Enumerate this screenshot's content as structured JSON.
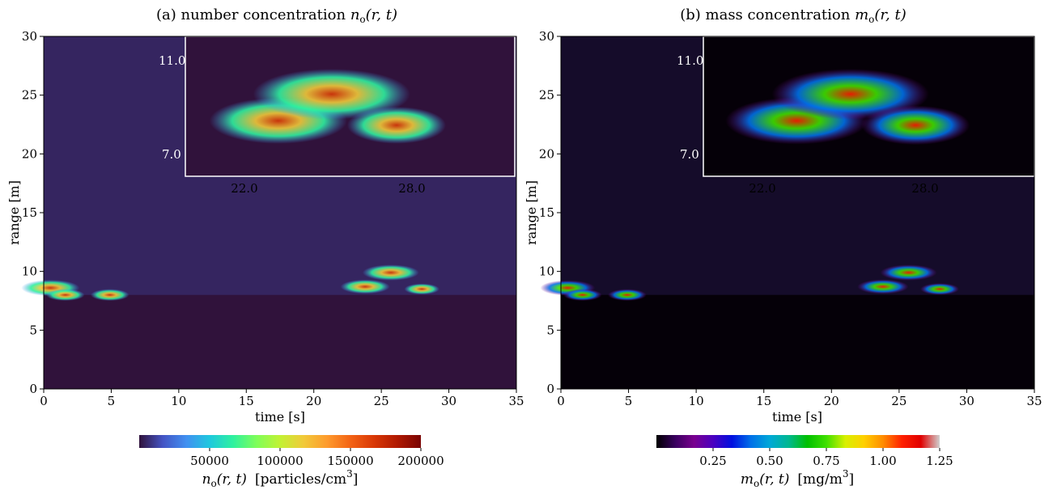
{
  "chart_data": [
    {
      "type": "heatmap",
      "title": "(a) number concentration nₒ(r, t)",
      "title_parts": {
        "prefix": "(a) number concentration ",
        "var": "n",
        "sub": "o",
        "args": "(r, t)"
      },
      "xlabel": "time [s]",
      "ylabel": "range [m]",
      "xlim": [
        0,
        35
      ],
      "ylim": [
        0,
        30
      ],
      "xticks": [
        0,
        5,
        10,
        15,
        20,
        25,
        30,
        35
      ],
      "yticks": [
        0,
        5,
        10,
        15,
        20,
        25,
        30
      ],
      "colorbar": {
        "label_var": "n",
        "label_sub": "o",
        "label_args": "(r, t)",
        "label_unit": "[particles/cm",
        "label_exp": "3",
        "label_close": "]",
        "range": [
          0,
          200000
        ],
        "ticks": [
          50000,
          100000,
          150000,
          200000
        ],
        "tick_labels": [
          "50000",
          "100000",
          "150000",
          "200000"
        ],
        "colormap": [
          "#30123b",
          "#4454c4",
          "#4190f1",
          "#1fc8de",
          "#2ef19f",
          "#7ffe59",
          "#c2f234",
          "#f1ca3a",
          "#fe9b2d",
          "#f36315",
          "#d93806",
          "#b01901",
          "#7a0403"
        ]
      },
      "inset": {
        "xticks": [
          22.0,
          28.0
        ],
        "xtick_labels": [
          "22.0",
          "28.0"
        ],
        "yticks": [
          7.0,
          11.0
        ],
        "ytick_labels": [
          "7.0",
          "11.0"
        ],
        "xlim": [
          20.5,
          32.2
        ],
        "ylim": [
          6.2,
          12.5
        ]
      },
      "plumes": [
        {
          "t": 0.5,
          "r": 8.6,
          "peak": 1.0
        },
        {
          "t": 1.6,
          "r": 8.0,
          "peak": 0.45
        },
        {
          "t": 4.9,
          "r": 8.0,
          "peak": 0.45
        },
        {
          "t": 23.8,
          "r": 8.7,
          "peak": 0.75
        },
        {
          "t": 25.7,
          "r": 9.9,
          "peak": 0.95
        },
        {
          "t": 28.0,
          "r": 8.5,
          "peak": 0.35
        }
      ]
    },
    {
      "type": "heatmap",
      "title": "(b) mass concentration mₒ(r, t)",
      "title_parts": {
        "prefix": "(b) mass concentration ",
        "var": "m",
        "sub": "o",
        "args": "(r, t)"
      },
      "xlabel": "time [s]",
      "ylabel": "range [m]",
      "xlim": [
        0,
        35
      ],
      "ylim": [
        0,
        30
      ],
      "xticks": [
        0,
        5,
        10,
        15,
        20,
        25,
        30,
        35
      ],
      "yticks": [
        0,
        5,
        10,
        15,
        20,
        25,
        30
      ],
      "colorbar": {
        "label_var": "m",
        "label_sub": "o",
        "label_args": "(r, t)",
        "label_unit": "[mg/m",
        "label_exp": "3",
        "label_close": "]",
        "range": [
          0,
          1.25
        ],
        "ticks": [
          0.25,
          0.5,
          0.75,
          1.0,
          1.25
        ],
        "tick_labels": [
          "0.25",
          "0.50",
          "0.75",
          "1.00",
          "1.25"
        ],
        "colormap": [
          "#000000",
          "#3a0060",
          "#7a008f",
          "#4b00c0",
          "#0010e0",
          "#0070e8",
          "#00a8d8",
          "#00b890",
          "#00c000",
          "#40e000",
          "#d8f000",
          "#ffd000",
          "#ff8c00",
          "#ff2000",
          "#e00000",
          "#d0d0d0"
        ]
      },
      "inset": {
        "xticks": [
          22.0,
          28.0
        ],
        "xtick_labels": [
          "22.0",
          "28.0"
        ],
        "yticks": [
          7.0,
          11.0
        ],
        "ytick_labels": [
          "7.0",
          "11.0"
        ],
        "xlim": [
          20.5,
          32.2
        ],
        "ylim": [
          6.2,
          12.5
        ]
      },
      "plumes": [
        {
          "t": 0.5,
          "r": 8.6,
          "peak": 0.9
        },
        {
          "t": 1.6,
          "r": 8.0,
          "peak": 0.45
        },
        {
          "t": 4.9,
          "r": 8.0,
          "peak": 0.45
        },
        {
          "t": 23.8,
          "r": 8.7,
          "peak": 0.8
        },
        {
          "t": 25.7,
          "r": 9.9,
          "peak": 0.95
        },
        {
          "t": 28.0,
          "r": 8.5,
          "peak": 0.45
        }
      ]
    }
  ]
}
